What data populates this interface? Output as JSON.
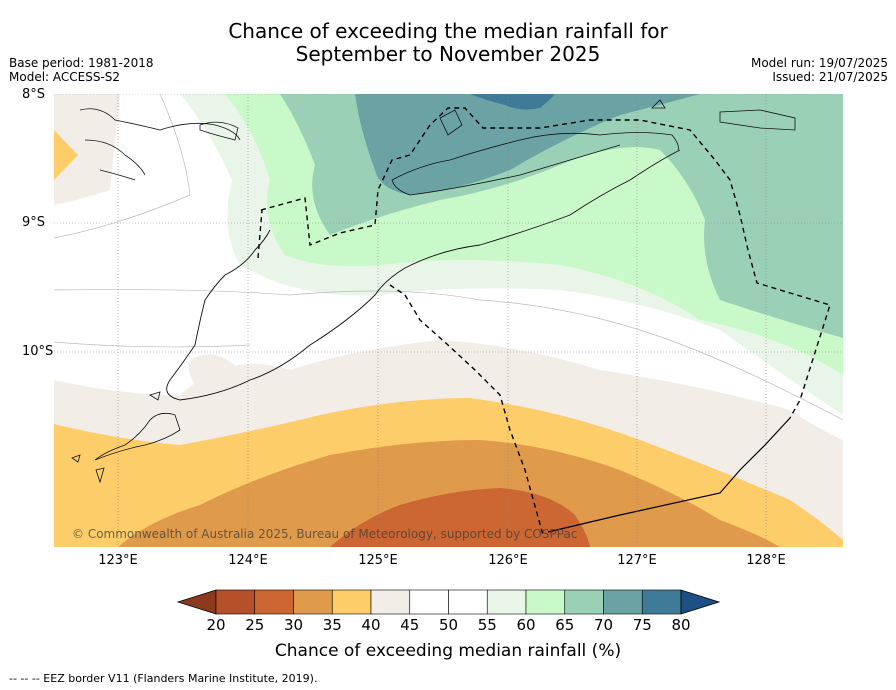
{
  "title_line1": "Chance of exceeding the median rainfall for",
  "title_line2": "September to November 2025",
  "base_period": "Base period: 1981-2018",
  "model": "Model: ACCESS-S2",
  "model_run": "Model run: 19/07/2025",
  "issued": "Issued: 21/07/2025",
  "lat_labels": [
    "8°S",
    "9°S",
    "10°S"
  ],
  "lon_labels": [
    "123°E",
    "124°E",
    "125°E",
    "126°E",
    "127°E",
    "128°E"
  ],
  "copyright": "© Commonwealth of Australia 2025, Bureau of Meteorology, supported by COSPPac",
  "colorbar": {
    "title": "Chance of exceeding median rainfall (%)",
    "ticks": [
      "20",
      "25",
      "30",
      "35",
      "40",
      "45",
      "50",
      "55",
      "60",
      "65",
      "70",
      "75",
      "80"
    ],
    "colors": [
      "#8c3a1e",
      "#b5502a",
      "#cc6633",
      "#e09a4c",
      "#fdcd6a",
      "#f2ede6",
      "#ffffff",
      "#ffffff",
      "#e8f5e8",
      "#caf9c9",
      "#9ad0b6",
      "#6ba3a5",
      "#3f7a99",
      "#1d4f85"
    ]
  },
  "footnote": "--  --  -- EEZ border V11 (Flanders Marine Institute, 2019)."
}
